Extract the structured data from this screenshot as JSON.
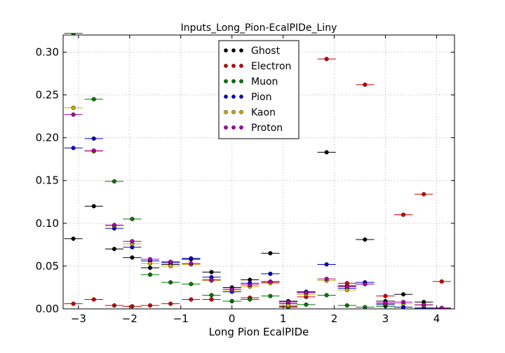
{
  "chart_data": {
    "type": "scatter",
    "title": "Inputs_Long_Pion-EcalPIDe_Liny",
    "xlabel": "Long Pion EcalPIDe",
    "ylabel": "",
    "xlim": [
      -3.3,
      4.35
    ],
    "ylim": [
      0.0,
      0.32
    ],
    "xticks": [
      -3,
      -2,
      -1,
      0,
      1,
      2,
      3,
      4
    ],
    "yticks": [
      0.0,
      0.05,
      0.1,
      0.15,
      0.2,
      0.25,
      0.3
    ],
    "xtick_labels": [
      "−3",
      "−2",
      "−1",
      "0",
      "1",
      "2",
      "3",
      "4"
    ],
    "ytick_labels": [
      "0.00",
      "0.05",
      "0.10",
      "0.15",
      "0.20",
      "0.25",
      "0.30"
    ],
    "grid": true,
    "legend_position": "top-center",
    "x_error_half_width": 0.18,
    "series": [
      {
        "name": "Ghost",
        "color": "#000000",
        "x": [
          -3.1,
          -2.7,
          -2.3,
          -1.95,
          -1.6,
          -1.2,
          -0.8,
          -0.4,
          0.0,
          0.35,
          0.75,
          1.1,
          1.45,
          1.85,
          2.25,
          2.6,
          3.0,
          3.35,
          3.75,
          4.1
        ],
        "y": [
          0.082,
          0.12,
          0.07,
          0.06,
          0.048,
          0.052,
          0.058,
          0.043,
          0.025,
          0.034,
          0.065,
          0.009,
          0.019,
          0.183,
          0.027,
          0.081,
          0.009,
          0.017,
          0.008,
          0.001
        ]
      },
      {
        "name": "Electron",
        "color": "#cc0000",
        "x": [
          -3.1,
          -2.7,
          -2.3,
          -1.95,
          -1.6,
          -1.2,
          -0.8,
          -0.4,
          0.0,
          0.35,
          0.75,
          1.1,
          1.45,
          1.85,
          2.25,
          2.6,
          3.0,
          3.35,
          3.75,
          4.1
        ],
        "y": [
          0.006,
          0.011,
          0.004,
          0.003,
          0.004,
          0.006,
          0.011,
          0.011,
          0.009,
          0.013,
          0.031,
          0.003,
          0.014,
          0.292,
          0.03,
          0.262,
          0.015,
          0.11,
          0.134,
          0.032
        ]
      },
      {
        "name": "Muon",
        "color": "#007700",
        "x": [
          -3.1,
          -2.7,
          -2.3,
          -1.95,
          -1.6,
          -1.2,
          -0.8,
          -0.4,
          0.0,
          0.35,
          0.75,
          1.1,
          1.45,
          1.85,
          2.25,
          2.6,
          3.0,
          3.35,
          3.75,
          4.1
        ],
        "y": [
          0.322,
          0.245,
          0.149,
          0.105,
          0.04,
          0.031,
          0.029,
          0.016,
          0.009,
          0.011,
          0.015,
          0.002,
          0.005,
          0.016,
          0.004,
          0.002,
          0.003,
          0.002,
          0.001,
          0.0
        ]
      },
      {
        "name": "Pion",
        "color": "#0000cc",
        "x": [
          -3.1,
          -2.7,
          -2.3,
          -1.95,
          -1.6,
          -1.2,
          -0.8,
          -0.4,
          0.0,
          0.35,
          0.75,
          1.1,
          1.45,
          1.85,
          2.25,
          2.6,
          3.0,
          3.35,
          3.75,
          4.1
        ],
        "y": [
          0.188,
          0.199,
          0.094,
          0.072,
          0.056,
          0.054,
          0.059,
          0.037,
          0.02,
          0.03,
          0.041,
          0.006,
          0.02,
          0.052,
          0.024,
          0.031,
          0.005,
          0.002,
          0.001,
          0.0
        ]
      },
      {
        "name": "Kaon",
        "color": "#ccaa00",
        "x": [
          -3.1,
          -2.7,
          -2.3,
          -1.95,
          -1.6,
          -1.2,
          -0.8,
          -0.4,
          0.0,
          0.35,
          0.75,
          1.1,
          1.45,
          1.85,
          2.25,
          2.6,
          3.0,
          3.35,
          3.75,
          4.1
        ],
        "y": [
          0.235,
          0.184,
          0.097,
          0.076,
          0.053,
          0.05,
          0.052,
          0.033,
          0.022,
          0.026,
          0.03,
          0.004,
          0.017,
          0.033,
          0.022,
          0.029,
          0.006,
          0.006,
          0.004,
          0.0
        ]
      },
      {
        "name": "Proton",
        "color": "#aa00aa",
        "x": [
          -3.1,
          -2.7,
          -2.3,
          -1.95,
          -1.6,
          -1.2,
          -0.8,
          -0.4,
          0.0,
          0.35,
          0.75,
          1.1,
          1.45,
          1.85,
          2.25,
          2.6,
          3.0,
          3.35,
          3.75,
          4.1
        ],
        "y": [
          0.227,
          0.185,
          0.098,
          0.079,
          0.058,
          0.055,
          0.053,
          0.034,
          0.023,
          0.028,
          0.032,
          0.008,
          0.019,
          0.035,
          0.026,
          0.029,
          0.007,
          0.008,
          0.005,
          0.001
        ]
      }
    ]
  }
}
